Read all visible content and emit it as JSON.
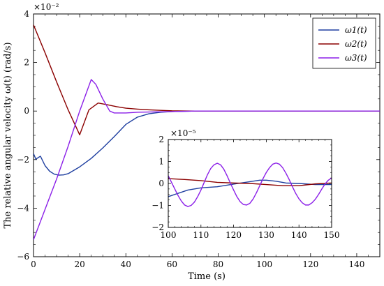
{
  "chart_data": [
    {
      "type": "line",
      "xlabel": "Time (s)",
      "ylabel": "The relative angular velocity ω(t) (rad/s)",
      "xlim": [
        0,
        150
      ],
      "ylim": [
        -6,
        4
      ],
      "y_multiplier": "×10⁻²",
      "xticks": [
        "0",
        "20",
        "40",
        "60",
        "80",
        "100",
        "120",
        "140"
      ],
      "yticks": [
        "−6",
        "−4",
        "−2",
        "0",
        "2",
        "4"
      ],
      "xtick_values": [
        0,
        20,
        40,
        60,
        80,
        100,
        120,
        140
      ],
      "ytick_values": [
        -6,
        -4,
        -2,
        0,
        2,
        4
      ],
      "grid": false,
      "legend_position": "top-right",
      "series": [
        {
          "name": "ω1(t)",
          "color": "#1f3fa0",
          "x": [
            0,
            1,
            2,
            3,
            5,
            7,
            9,
            11,
            13,
            15,
            20,
            25,
            30,
            35,
            40,
            45,
            50,
            55,
            60,
            65,
            70,
            80,
            100,
            150
          ],
          "y": [
            -1.75,
            -1.98,
            -1.92,
            -1.86,
            -2.25,
            -2.48,
            -2.6,
            -2.64,
            -2.63,
            -2.58,
            -2.3,
            -1.95,
            -1.52,
            -1.05,
            -0.55,
            -0.25,
            -0.11,
            -0.05,
            -0.02,
            -0.01,
            0,
            0,
            0,
            0
          ]
        },
        {
          "name": "ω2(t)",
          "color": "#8b0000",
          "x": [
            0,
            5,
            10,
            15,
            20,
            24,
            28,
            32,
            36,
            40,
            45,
            50,
            55,
            60,
            70,
            80,
            100,
            150
          ],
          "y": [
            3.55,
            2.4,
            1.2,
            0.05,
            -0.98,
            0.05,
            0.33,
            0.26,
            0.18,
            0.12,
            0.08,
            0.05,
            0.03,
            0.01,
            0,
            0,
            0,
            0
          ]
        },
        {
          "name": "ω3(t)",
          "color": "#8b1fe8",
          "x": [
            0,
            5,
            10,
            15,
            20,
            25,
            27,
            30,
            33,
            35,
            40,
            45,
            50,
            60,
            70,
            80,
            100,
            150
          ],
          "y": [
            -5.3,
            -4.05,
            -2.8,
            -1.45,
            0.0,
            1.3,
            1.1,
            0.5,
            0.0,
            -0.08,
            -0.08,
            -0.05,
            -0.04,
            -0.02,
            0,
            0,
            0,
            0
          ]
        }
      ]
    },
    {
      "type": "line",
      "inset": true,
      "xlim": [
        100,
        150
      ],
      "ylim": [
        -2,
        2
      ],
      "y_multiplier": "×10⁻⁵",
      "xticks": [
        "100",
        "110",
        "120",
        "130",
        "140",
        "150"
      ],
      "yticks": [
        "−2",
        "−1",
        "0",
        "1",
        "2"
      ],
      "xtick_values": [
        100,
        110,
        120,
        130,
        140,
        150
      ],
      "ytick_values": [
        -2,
        -1,
        0,
        1,
        2
      ],
      "series": [
        {
          "color": "#1f3fa0",
          "x": [
            100,
            103,
            106,
            110,
            115,
            120,
            125,
            128,
            130,
            133,
            136,
            140,
            145,
            150
          ],
          "y": [
            -0.6,
            -0.45,
            -0.3,
            -0.2,
            -0.15,
            -0.03,
            0.08,
            0.15,
            0.15,
            0.1,
            0.02,
            0.0,
            -0.05,
            -0.05
          ]
        },
        {
          "color": "#8b0000",
          "x": [
            100,
            105,
            110,
            115,
            120,
            125,
            130,
            135,
            140,
            145,
            150
          ],
          "y": [
            0.22,
            0.18,
            0.13,
            0.05,
            0.02,
            0.0,
            -0.05,
            -0.1,
            -0.1,
            -0.02,
            0.02
          ]
        },
        {
          "color": "#8b1fe8",
          "x": [
            100,
            101,
            102,
            103,
            104,
            105,
            106,
            107,
            108,
            109,
            110,
            111,
            112,
            113,
            114,
            115,
            116,
            117,
            118,
            119,
            120,
            121,
            122,
            123,
            124,
            125,
            126,
            127,
            128,
            129,
            130,
            131,
            132,
            133,
            134,
            135,
            136,
            137,
            138,
            139,
            140,
            141,
            142,
            143,
            144,
            145,
            146,
            147,
            148,
            149,
            150
          ],
          "y": [
            0.35,
            0.05,
            -0.25,
            -0.55,
            -0.8,
            -0.98,
            -1.05,
            -1.0,
            -0.85,
            -0.6,
            -0.3,
            0.05,
            0.4,
            0.68,
            0.85,
            0.92,
            0.85,
            0.65,
            0.35,
            0.02,
            -0.3,
            -0.6,
            -0.83,
            -0.96,
            -0.98,
            -0.9,
            -0.7,
            -0.42,
            -0.1,
            0.22,
            0.5,
            0.72,
            0.88,
            0.93,
            0.88,
            0.72,
            0.47,
            0.18,
            -0.15,
            -0.45,
            -0.7,
            -0.88,
            -0.98,
            -0.98,
            -0.88,
            -0.72,
            -0.5,
            -0.25,
            -0.02,
            0.15,
            0.25
          ]
        }
      ]
    }
  ]
}
